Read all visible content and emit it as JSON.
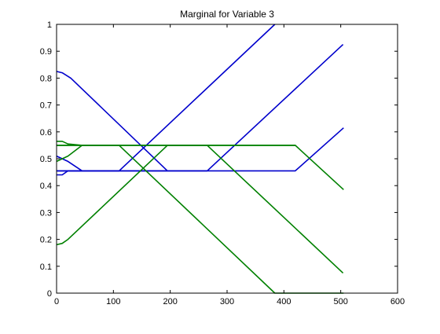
{
  "chart_data": {
    "type": "line",
    "title": "Marginal for Variable 3",
    "xlabel": "",
    "ylabel": "",
    "xlim": [
      0,
      600
    ],
    "ylim": [
      0,
      1
    ],
    "xticks": [
      0,
      100,
      200,
      300,
      400,
      500,
      600
    ],
    "yticks": [
      0,
      0.1,
      0.2,
      0.3,
      0.4,
      0.5,
      0.6,
      0.7,
      0.8,
      0.9,
      1
    ],
    "xtick_labels": [
      "0",
      "100",
      "200",
      "300",
      "400",
      "500",
      "600"
    ],
    "ytick_labels": [
      "0",
      "0.1",
      "0.2",
      "0.3",
      "0.4",
      "0.5",
      "0.6",
      "0.7",
      "0.8",
      "0.9",
      "1"
    ],
    "grid": false,
    "legend": false,
    "colors": {
      "blue": "#0000cc",
      "green": "#008000"
    },
    "series": [
      {
        "color": "blue",
        "x": [
          0,
          10,
          25,
          195
        ],
        "y": [
          0.825,
          0.82,
          0.8,
          0.455
        ]
      },
      {
        "color": "blue",
        "x": [
          0,
          10,
          20,
          45
        ],
        "y": [
          0.51,
          0.5,
          0.49,
          0.455
        ]
      },
      {
        "color": "blue",
        "x": [
          0,
          10,
          20,
          30,
          110,
          384
        ],
        "y": [
          0.44,
          0.44,
          0.455,
          0.455,
          0.455,
          1.0
        ]
      },
      {
        "color": "blue",
        "x": [
          0,
          50,
          265,
          504
        ],
        "y": [
          0.455,
          0.455,
          0.455,
          0.925
        ]
      },
      {
        "color": "blue",
        "x": [
          0,
          100,
          200,
          300,
          420,
          505
        ],
        "y": [
          0.455,
          0.455,
          0.455,
          0.455,
          0.455,
          0.615
        ]
      },
      {
        "color": "green",
        "x": [
          0,
          10,
          20,
          45,
          110,
          384,
          505
        ],
        "y": [
          0.565,
          0.565,
          0.555,
          0.55,
          0.55,
          0.0,
          0.0
        ]
      },
      {
        "color": "green",
        "x": [
          0,
          10,
          20,
          45
        ],
        "y": [
          0.49,
          0.5,
          0.51,
          0.55
        ]
      },
      {
        "color": "green",
        "x": [
          0,
          10,
          20,
          195,
          420
        ],
        "y": [
          0.18,
          0.185,
          0.2,
          0.55,
          0.55
        ]
      },
      {
        "color": "green",
        "x": [
          0,
          100,
          200,
          265,
          504
        ],
        "y": [
          0.55,
          0.55,
          0.55,
          0.55,
          0.075
        ]
      },
      {
        "color": "green",
        "x": [
          0,
          100,
          200,
          300,
          420,
          505
        ],
        "y": [
          0.55,
          0.55,
          0.55,
          0.55,
          0.55,
          0.385
        ]
      }
    ]
  }
}
